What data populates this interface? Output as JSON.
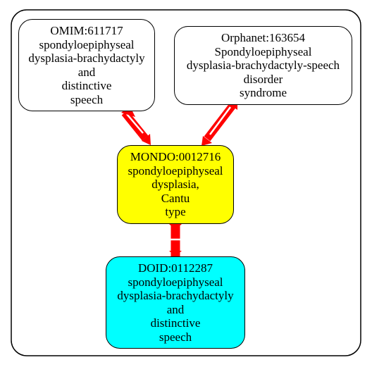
{
  "colors": {
    "edge": "#ff0000",
    "frame": "#000000",
    "default_fill": "#ffffff",
    "mondo_fill": "#ffff00",
    "doid_fill": "#00ffff"
  },
  "nodes": {
    "omim": {
      "lines": [
        "OMIM:611717",
        "spondyloepiphyseal",
        "dysplasia-brachydactyly",
        "and",
        "distinctive",
        "speech"
      ],
      "fill": "#ffffff"
    },
    "orphanet": {
      "lines": [
        "Orphanet:163654",
        "Spondyloepiphyseal",
        "dysplasia-brachydactyly-speech",
        "disorder",
        "syndrome"
      ],
      "fill": "#ffffff"
    },
    "mondo": {
      "lines": [
        "MONDO:0012716",
        "spondyloepiphyseal",
        "dysplasia,",
        "Cantu",
        "type"
      ],
      "fill": "#ffff00"
    },
    "doid": {
      "lines": [
        "DOID:0112287",
        "spondyloepiphyseal",
        "dysplasia-brachydactyly",
        "and",
        "distinctive",
        "speech"
      ],
      "fill": "#00ffff"
    }
  },
  "edges": [
    {
      "from": "omim",
      "to": "mondo"
    },
    {
      "from": "orphanet",
      "to": "mondo"
    },
    {
      "from": "mondo",
      "to": "doid"
    }
  ]
}
